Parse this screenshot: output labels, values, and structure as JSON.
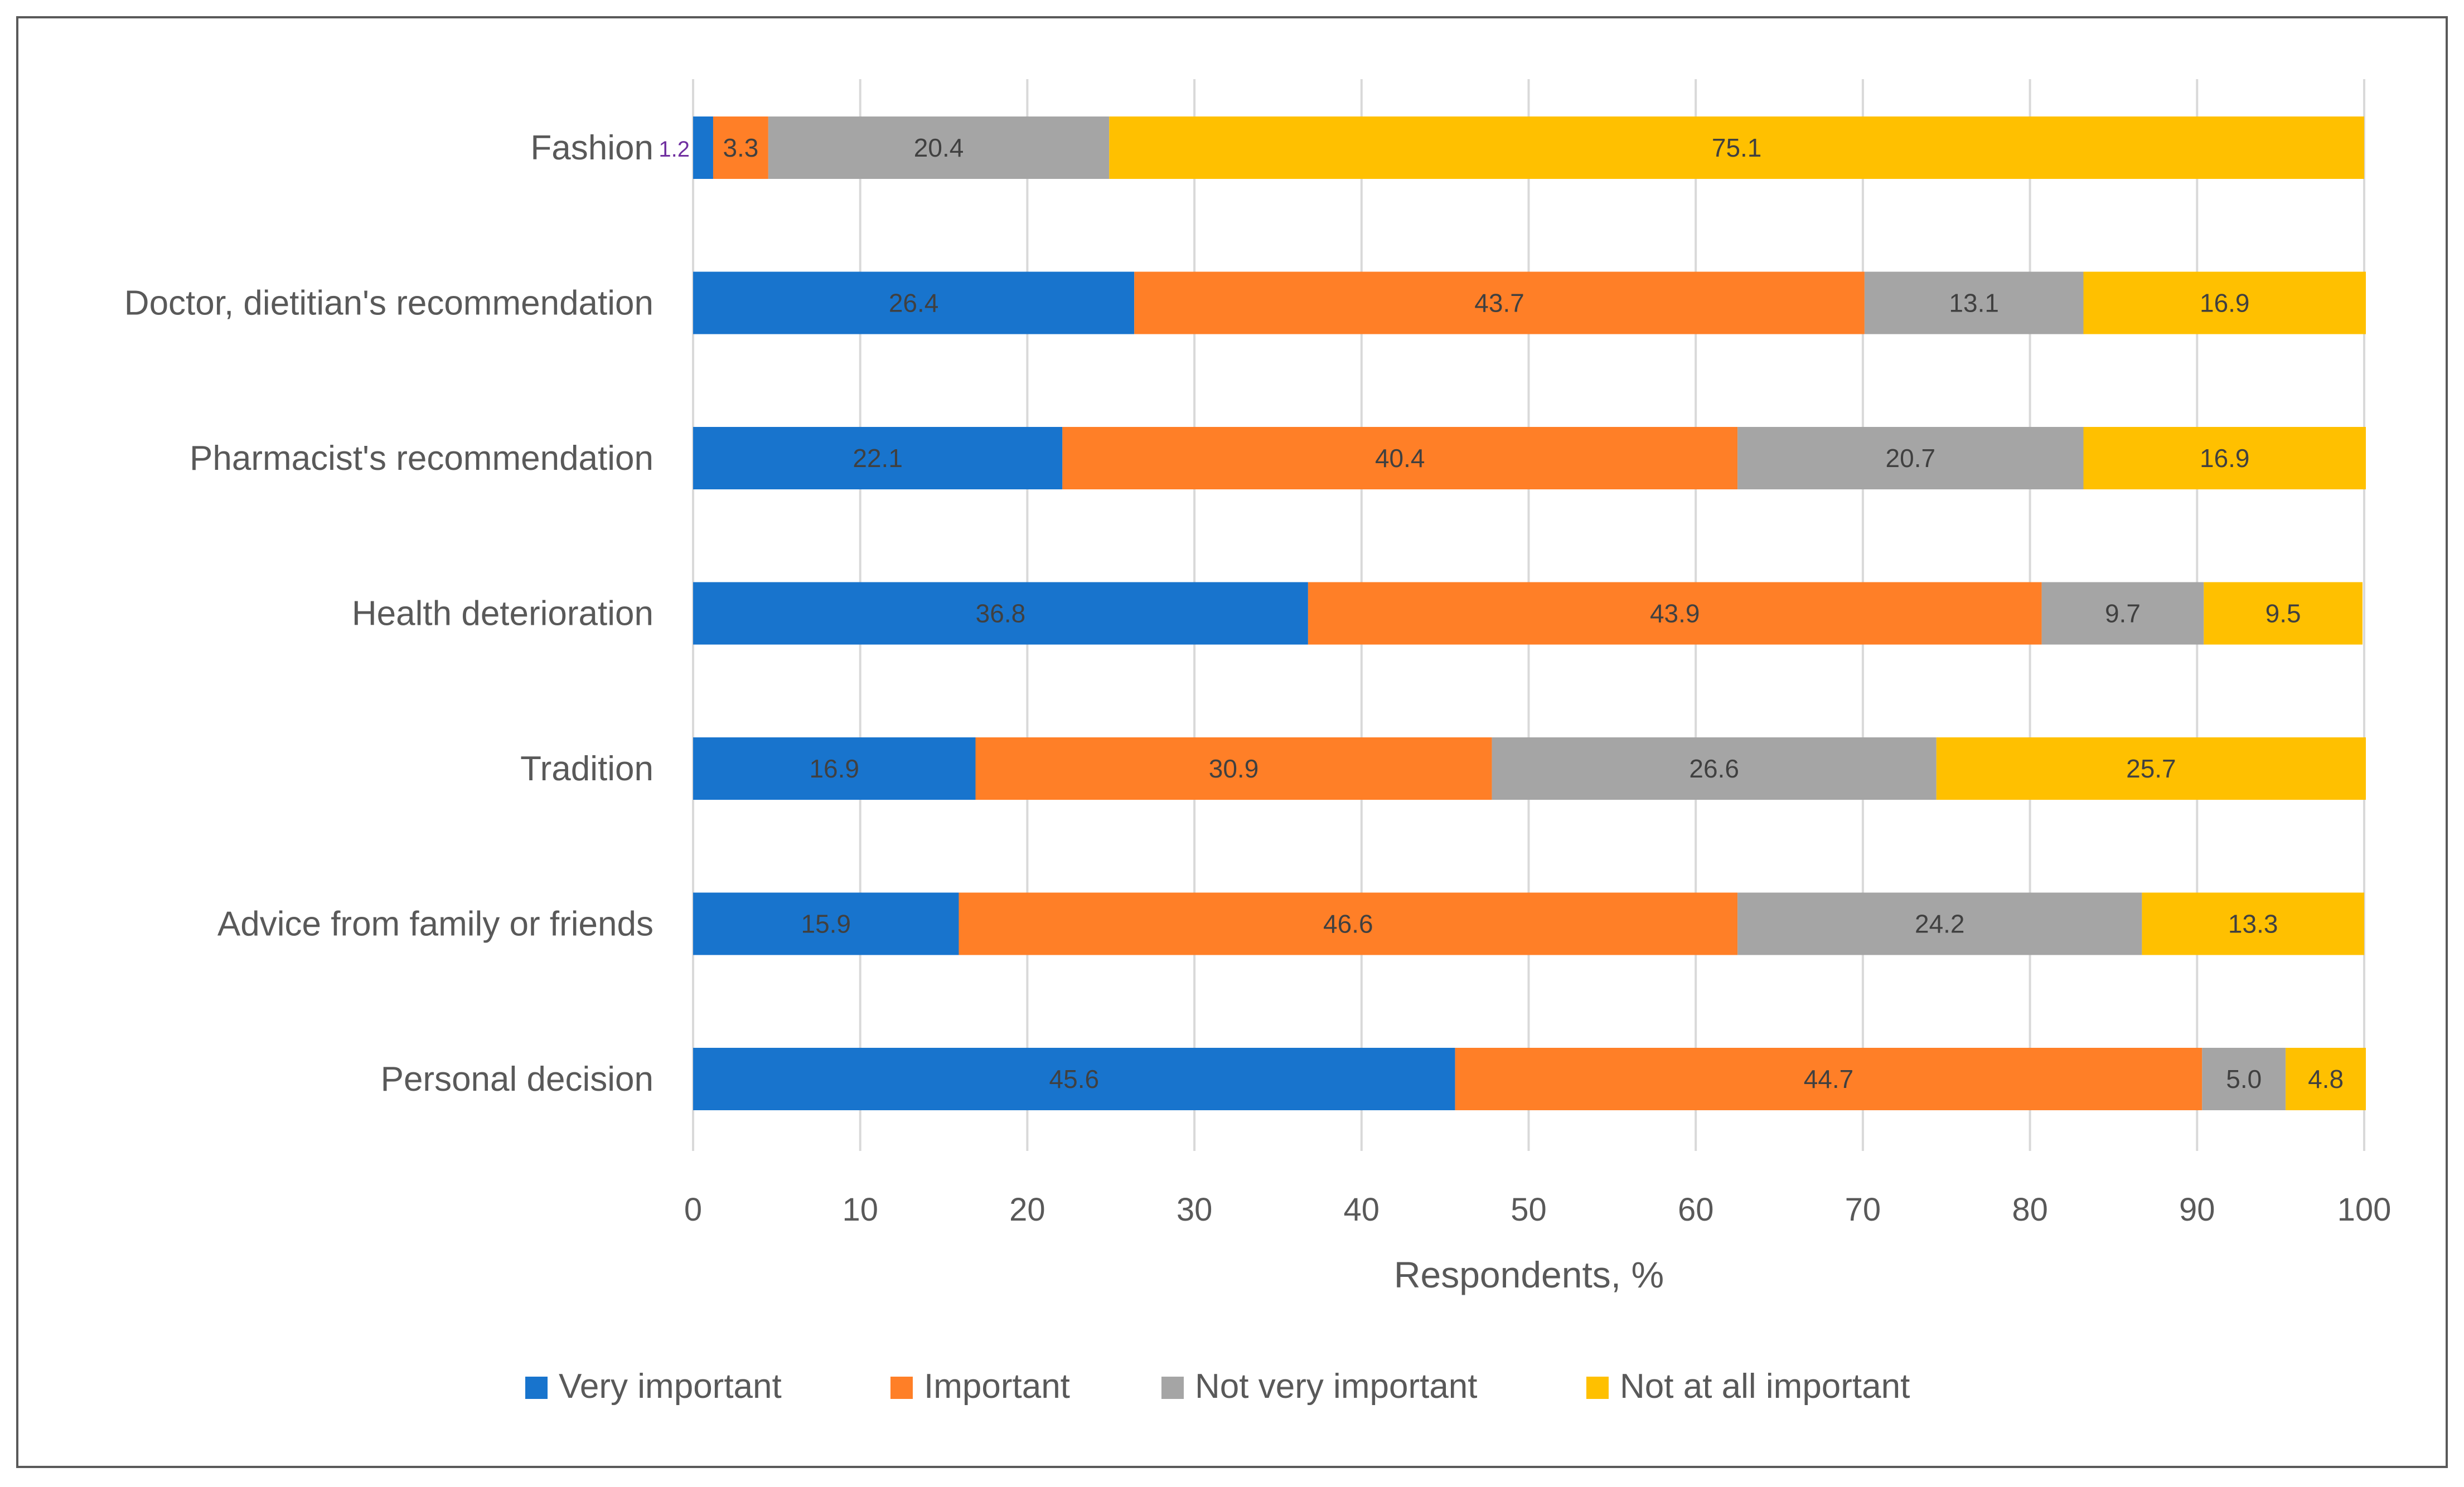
{
  "chart_data": {
    "type": "bar",
    "orientation": "horizontal",
    "stacked": true,
    "title": "",
    "xlabel": "Respondents, %",
    "ylabel": "",
    "xlim": [
      0,
      100
    ],
    "xticks": [
      0,
      10,
      20,
      30,
      40,
      50,
      60,
      70,
      80,
      90,
      100
    ],
    "xtick_labels": [
      "0",
      "10",
      "20",
      "30",
      "40",
      "50",
      "60",
      "70",
      "80",
      "90",
      "100"
    ],
    "grid": "vertical",
    "legend_position": "bottom",
    "categories": [
      "Fashion",
      "Doctor, dietitian's recommendation",
      "Pharmacist's recommendation",
      "Health deterioration",
      "Tradition",
      "Advice from family or friends",
      "Personal decision"
    ],
    "series": [
      {
        "name": "Very important",
        "color": "#1874CD",
        "values": [
          1.2,
          26.4,
          22.1,
          36.8,
          16.9,
          15.9,
          45.6
        ],
        "labels": [
          "1.2",
          "26.4",
          "22.1",
          "36.8",
          "16.9",
          "15.9",
          "45.6"
        ]
      },
      {
        "name": "Important",
        "color": "#FF7F27",
        "values": [
          3.3,
          43.7,
          40.4,
          43.9,
          30.9,
          46.6,
          44.7
        ],
        "labels": [
          "3.3",
          "43.7",
          "40.4",
          "43.9",
          "30.9",
          "46.6",
          "44.7"
        ]
      },
      {
        "name": "Not very important",
        "color": "#A5A5A5",
        "values": [
          20.4,
          13.1,
          20.7,
          9.7,
          26.6,
          24.2,
          5.0
        ],
        "labels": [
          "20.4",
          "13.1",
          "20.7",
          "9.7",
          "26.6",
          "24.2",
          "5.0"
        ]
      },
      {
        "name": "Not at all important",
        "color": "#FFC000",
        "values": [
          75.1,
          16.9,
          16.9,
          9.5,
          25.7,
          13.3,
          4.8
        ],
        "labels": [
          "75.1",
          "16.9",
          "16.9",
          "9.5",
          "25.7",
          "13.3",
          "4.8"
        ]
      }
    ]
  }
}
